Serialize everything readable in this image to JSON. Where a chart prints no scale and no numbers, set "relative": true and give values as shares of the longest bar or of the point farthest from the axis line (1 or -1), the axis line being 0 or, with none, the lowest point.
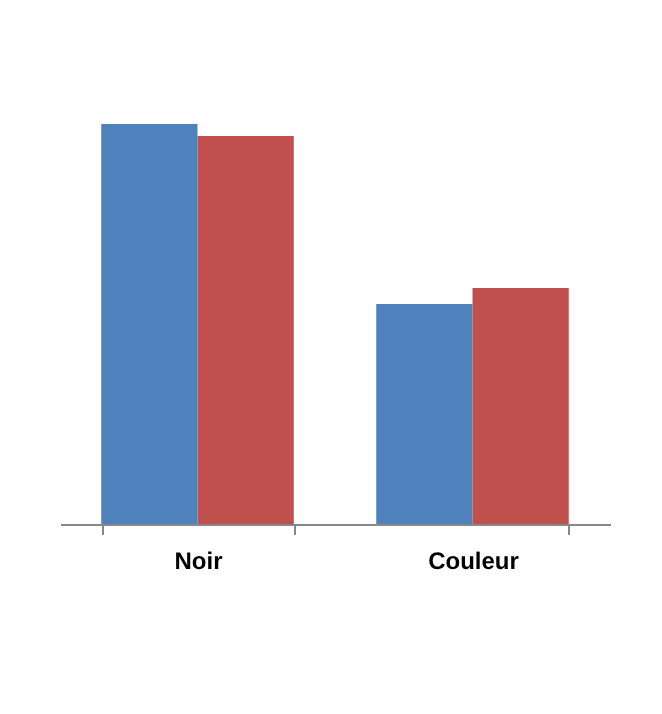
{
  "chart_data": {
    "type": "bar",
    "relative": true,
    "categories": [
      "Noir",
      "Couleur"
    ],
    "series": [
      {
        "color": "#4f81bd",
        "values": [
          1,
          0.55
        ]
      },
      {
        "color": "#c0504d",
        "values": [
          0.97,
          0.59
        ]
      }
    ],
    "grid": false,
    "legend": false
  }
}
